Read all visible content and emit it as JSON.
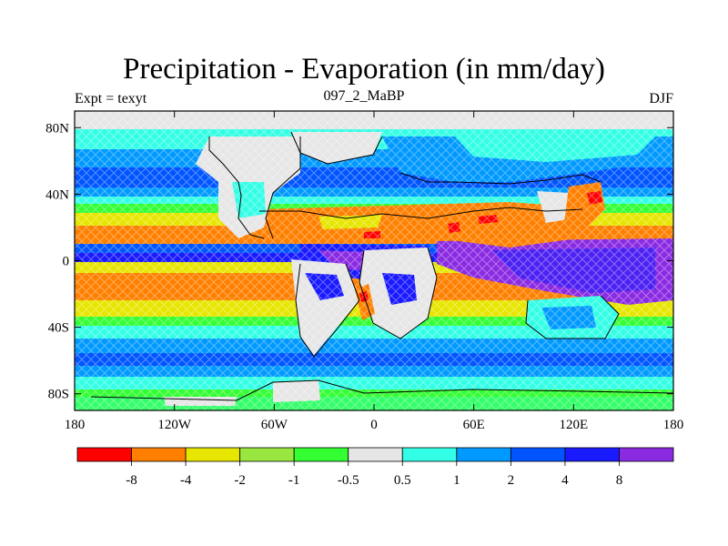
{
  "title": "Precipitation - Evaporation (in mm/day)",
  "left_string": "Expt = texyt",
  "center_string": "097_2_MaBP",
  "right_string": "DJF",
  "map": {
    "projection": "cylindrical-equidistant",
    "lon_range": [
      -180,
      180
    ],
    "lat_range": [
      -90,
      90
    ],
    "x_ticks": [
      {
        "value": -180,
        "label": "180"
      },
      {
        "value": -120,
        "label": "120W"
      },
      {
        "value": -60,
        "label": "60W"
      },
      {
        "value": 0,
        "label": "0"
      },
      {
        "value": 60,
        "label": "60E"
      },
      {
        "value": 120,
        "label": "120E"
      },
      {
        "value": 180,
        "label": "180"
      }
    ],
    "y_ticks": [
      {
        "value": 80,
        "label": "80N"
      },
      {
        "value": 40,
        "label": "40N"
      },
      {
        "value": 0,
        "label": "0"
      },
      {
        "value": -40,
        "label": "40S"
      },
      {
        "value": -80,
        "label": "80S"
      }
    ]
  },
  "legend": {
    "colors": [
      "#ff0000",
      "#ff8000",
      "#e6e600",
      "#99e640",
      "#33ff33",
      "#e6e6e6",
      "#33ffe6",
      "#0099ff",
      "#0055ff",
      "#1a1aff",
      "#8a2be2"
    ],
    "labels": [
      "-8",
      "-4",
      "-2",
      "-1",
      "-0.5",
      "0.5",
      "1",
      "2",
      "4",
      "8"
    ]
  }
}
